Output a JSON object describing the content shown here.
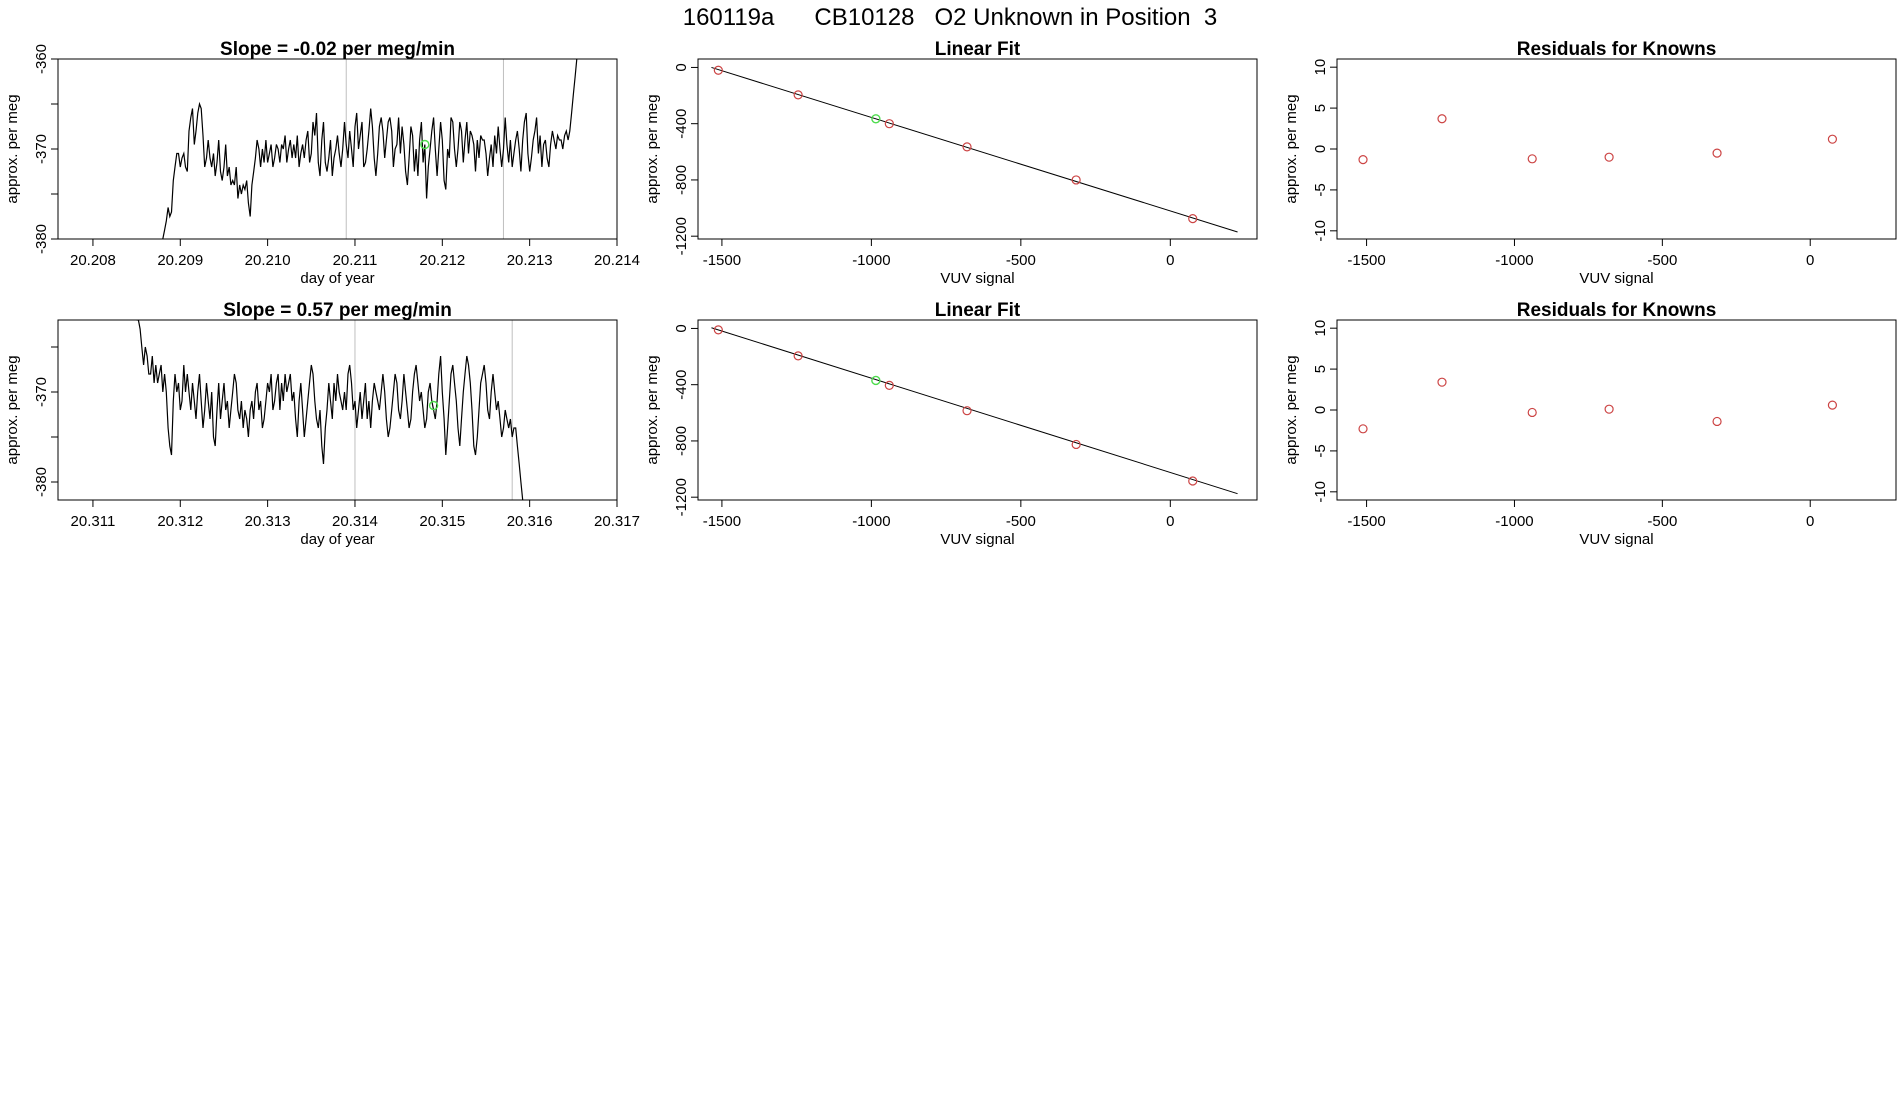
{
  "figure": {
    "title": "160119a      CB10128   O2 Unknown in Position  3"
  },
  "chart_data": [
    {
      "type": "line",
      "title": "Slope =  -0.02  per meg/min",
      "xlabel": "day of year",
      "ylabel": "approx. per meg",
      "xlim": [
        20.2076,
        20.214
      ],
      "ylim": [
        -380,
        -360
      ],
      "xticks": [
        "20.208",
        "20.209",
        "20.210",
        "20.211",
        "20.212",
        "20.213",
        "20.214"
      ],
      "yticks": [
        "-380",
        "-370",
        "-360"
      ],
      "minor_yticks": [
        -375,
        -365
      ],
      "vlines": [
        20.2109,
        20.2127
      ],
      "series": [
        {
          "color": "#000000",
          "x_start": 20.2088,
          "x_step": 2e-05,
          "y": [
            -380,
            -379,
            -378,
            -376.5,
            -377.5,
            -377,
            -373.5,
            -372,
            -370.5,
            -370.5,
            -372,
            -371,
            -370.5,
            -372,
            -372.5,
            -368,
            -366.5,
            -365.5,
            -369.5,
            -368,
            -366,
            -365,
            -365.5,
            -368.5,
            -372,
            -371,
            -369,
            -371,
            -372,
            -370.5,
            -373,
            -371.5,
            -369,
            -372.5,
            -373.5,
            -372,
            -369.5,
            -373,
            -372,
            -374,
            -373.5,
            -374,
            -372,
            -375.5,
            -374,
            -375,
            -374,
            -374.5,
            -373.5,
            -376,
            -377.5,
            -374,
            -372.5,
            -371,
            -369,
            -370,
            -372,
            -370,
            -371.5,
            -369,
            -371.5,
            -370.5,
            -369.5,
            -372,
            -371,
            -369.5,
            -370,
            -371.5,
            -369.5,
            -370,
            -368.5,
            -371.5,
            -370,
            -369,
            -371,
            -369.5,
            -371,
            -368.5,
            -372,
            -370.5,
            -369.5,
            -371,
            -369,
            -368,
            -371.5,
            -370.5,
            -367,
            -368.5,
            -366,
            -371.5,
            -373,
            -369,
            -367,
            -371.5,
            -372.5,
            -371,
            -369,
            -373,
            -371,
            -370,
            -368.5,
            -370.5,
            -372,
            -370,
            -367,
            -369.5,
            -371,
            -368,
            -370,
            -372,
            -367.5,
            -366,
            -370,
            -368.5,
            -367,
            -372,
            -371.5,
            -370,
            -368,
            -365.5,
            -367.5,
            -371,
            -373,
            -370.5,
            -367.5,
            -366.5,
            -368,
            -371,
            -369,
            -367,
            -366.5,
            -368,
            -372,
            -370,
            -369.5,
            -366.5,
            -370.5,
            -367.5,
            -369.5,
            -372.5,
            -374,
            -371,
            -367.5,
            -368.5,
            -372.5,
            -370,
            -373,
            -369,
            -367,
            -371.5,
            -369.5,
            -375.5,
            -372,
            -370,
            -368,
            -366.5,
            -370,
            -373,
            -370,
            -367,
            -369,
            -373.5,
            -374.5,
            -370,
            -371,
            -366.5,
            -367,
            -370,
            -372,
            -370,
            -367,
            -368,
            -371.5,
            -369,
            -367,
            -370.5,
            -368,
            -368.5,
            -369.5,
            -372.5,
            -369,
            -371,
            -368.5,
            -369,
            -369,
            -370.5,
            -373,
            -371,
            -369.5,
            -372,
            -368.5,
            -370.5,
            -367.5,
            -370,
            -372,
            -370,
            -366.5,
            -369.5,
            -371.5,
            -369,
            -372,
            -370.5,
            -369,
            -368,
            -370,
            -372.5,
            -369,
            -367,
            -366,
            -370.5,
            -372.5,
            -371,
            -369,
            -368,
            -366.5,
            -370.5,
            -368.5,
            -372,
            -369.5,
            -369,
            -371,
            -372,
            -369.5,
            -368,
            -369,
            -370,
            -368.5,
            -369,
            -369,
            -370,
            -368.5,
            -368,
            -369,
            -368,
            -366,
            -364,
            -362,
            -360
          ]
        }
      ],
      "highlight_point": {
        "x": 20.2118,
        "y": -369.5,
        "color": "#4ddc4d"
      }
    },
    {
      "type": "scatter",
      "title": "Linear Fit",
      "xlabel": "VUV signal",
      "ylabel": "approx. per meg",
      "xlim": [
        -1580,
        290
      ],
      "ylim": [
        -1220,
        60
      ],
      "xticks": [
        -1500,
        -1000,
        -500,
        0
      ],
      "yticks": [
        -1200,
        -800,
        -400,
        0
      ],
      "minor_yticks": [],
      "series": [
        {
          "name": "",
          "color": "#cc4444",
          "x": [
            -1512,
            -1245,
            -940,
            -680,
            -315,
            75
          ],
          "y": [
            -20,
            -195,
            -400,
            -565,
            -800,
            -1075
          ]
        }
      ],
      "highlight_point": {
        "x": -985,
        "y": -365,
        "color": "#4ddc4d"
      },
      "fit_line": {
        "x": [
          -1535,
          225
        ],
        "y": [
          0,
          -1170
        ]
      }
    },
    {
      "type": "scatter",
      "title": "Residuals for Knowns",
      "xlabel": "VUV signal",
      "ylabel": "approx. per meg",
      "xlim": [
        -1600,
        290
      ],
      "ylim": [
        -11,
        11
      ],
      "xticks": [
        -1500,
        -1000,
        -500,
        0
      ],
      "yticks": [
        -10,
        -5,
        0,
        5,
        10
      ],
      "minor_yticks": [],
      "series": [
        {
          "name": "",
          "color": "#cc4444",
          "x": [
            -1512,
            -1245,
            -940,
            -680,
            -315,
            75
          ],
          "y": [
            -1.3,
            3.7,
            -1.2,
            -1.0,
            -0.5,
            1.2
          ]
        }
      ]
    },
    {
      "type": "line",
      "title": "Slope =  0.57  per meg/min",
      "xlabel": "day of year",
      "ylabel": "approx. per meg",
      "xlim": [
        20.3106,
        20.317
      ],
      "ylim": [
        -382,
        -362
      ],
      "xticks": [
        "20.311",
        "20.312",
        "20.313",
        "20.314",
        "20.315",
        "20.316",
        "20.317"
      ],
      "yticks": [
        "-380",
        "-370"
      ],
      "minor_yticks": [
        -375,
        -365
      ],
      "vlines": [
        20.314,
        20.3158
      ],
      "series": [
        {
          "color": "#000000",
          "x_start": 20.3115,
          "x_step": 2e-05,
          "y": [
            -362,
            -362,
            -363,
            -365,
            -367,
            -365,
            -366,
            -368,
            -368,
            -366,
            -369,
            -367,
            -369,
            -368,
            -367,
            -370,
            -368,
            -370,
            -374,
            -376,
            -377,
            -371,
            -368,
            -370,
            -369,
            -372,
            -371,
            -367,
            -370,
            -368,
            -370,
            -372,
            -369,
            -371,
            -373,
            -370,
            -368,
            -371,
            -374,
            -372,
            -369,
            -371,
            -373,
            -370,
            -375,
            -376,
            -372,
            -369,
            -373,
            -371,
            -369,
            -372,
            -371,
            -374,
            -372,
            -370,
            -368,
            -369,
            -372,
            -373,
            -371,
            -374,
            -372,
            -373,
            -375,
            -372,
            -371,
            -373,
            -370,
            -369,
            -372,
            -371,
            -374,
            -373,
            -371,
            -369,
            -370,
            -368,
            -372,
            -371,
            -369,
            -368,
            -372,
            -369,
            -371,
            -368,
            -370,
            -369,
            -368,
            -371,
            -370,
            -373,
            -375,
            -371,
            -369,
            -372,
            -375,
            -373,
            -371,
            -369,
            -367,
            -368,
            -371,
            -373,
            -374,
            -372,
            -376,
            -378,
            -374,
            -372,
            -369,
            -371,
            -373,
            -369,
            -371,
            -368,
            -370,
            -371,
            -372,
            -370,
            -372,
            -368,
            -367,
            -369,
            -372,
            -371,
            -374,
            -372,
            -370,
            -373,
            -371,
            -369,
            -373,
            -371,
            -374,
            -371,
            -369,
            -370,
            -371,
            -372,
            -370,
            -368,
            -370,
            -373,
            -375,
            -374,
            -372,
            -370,
            -368,
            -369,
            -372,
            -373,
            -371,
            -368,
            -370,
            -372,
            -374,
            -373,
            -370,
            -368,
            -367,
            -369,
            -371,
            -370,
            -372,
            -374,
            -373,
            -370,
            -369,
            -371,
            -372,
            -373,
            -371,
            -368,
            -366,
            -370,
            -373,
            -377,
            -374,
            -371,
            -368,
            -367,
            -369,
            -371,
            -374,
            -376,
            -373,
            -370,
            -368,
            -366,
            -367,
            -369,
            -372,
            -376,
            -377,
            -375,
            -372,
            -369,
            -368,
            -367,
            -369,
            -372,
            -373,
            -370,
            -368,
            -370,
            -372,
            -371,
            -373,
            -375,
            -374,
            -372,
            -373,
            -374,
            -373,
            -375,
            -374,
            -374,
            -376,
            -378,
            -380,
            -382
          ]
        }
      ],
      "highlight_point": {
        "x": 20.3149,
        "y": -371.5,
        "color": "#4ddc4d"
      }
    },
    {
      "type": "scatter",
      "title": "Linear Fit",
      "xlabel": "VUV signal",
      "ylabel": "approx. per meg",
      "xlim": [
        -1580,
        290
      ],
      "ylim": [
        -1220,
        60
      ],
      "xticks": [
        -1500,
        -1000,
        -500,
        0
      ],
      "yticks": [
        -1200,
        -800,
        -400,
        0
      ],
      "minor_yticks": [],
      "series": [
        {
          "name": "",
          "color": "#cc4444",
          "x": [
            -1512,
            -1245,
            -940,
            -680,
            -315,
            75
          ],
          "y": [
            -10,
            -195,
            -405,
            -585,
            -825,
            -1085
          ]
        }
      ],
      "highlight_point": {
        "x": -985,
        "y": -370,
        "color": "#4ddc4d"
      },
      "fit_line": {
        "x": [
          -1535,
          225
        ],
        "y": [
          5,
          -1175
        ]
      }
    },
    {
      "type": "scatter",
      "title": "Residuals for Knowns",
      "xlabel": "VUV signal",
      "ylabel": "approx. per meg",
      "xlim": [
        -1600,
        290
      ],
      "ylim": [
        -11,
        11
      ],
      "xticks": [
        -1500,
        -1000,
        -500,
        0
      ],
      "yticks": [
        -10,
        -5,
        0,
        5,
        10
      ],
      "minor_yticks": [],
      "series": [
        {
          "name": "",
          "color": "#cc4444",
          "x": [
            -1512,
            -1245,
            -940,
            -680,
            -315,
            75
          ],
          "y": [
            -2.3,
            3.4,
            -0.3,
            0.1,
            -1.4,
            0.6
          ]
        }
      ]
    }
  ]
}
